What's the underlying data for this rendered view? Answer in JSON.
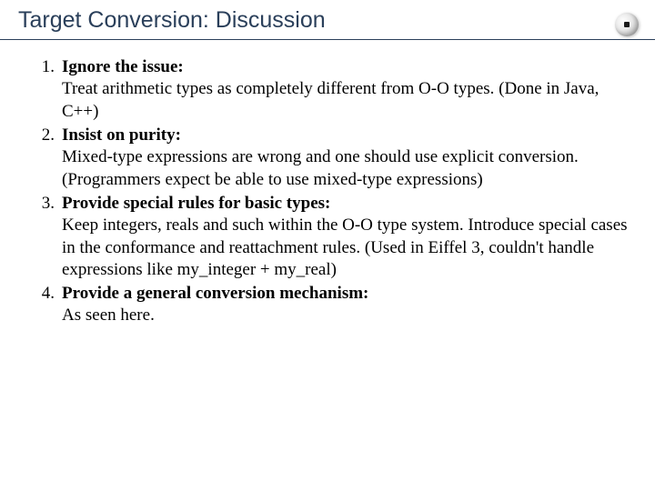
{
  "header": {
    "title": "Target Conversion: Discussion",
    "title_color": "#2a3f5a",
    "underline_color": "#2a3f5a"
  },
  "logo": {
    "name": "sphere-logo"
  },
  "list": {
    "items": [
      {
        "num": "1.",
        "title": "Ignore the issue:",
        "desc": "Treat arithmetic types as completely different from O-O types. (Done in Java, C++)"
      },
      {
        "num": "2.",
        "title": "Insist on purity:",
        "desc": "Mixed-type expressions are wrong and one should use explicit conversion. (Programmers expect be able to use mixed-type expressions)"
      },
      {
        "num": "3.",
        "title": "Provide special rules for basic types:",
        "desc": "Keep integers, reals and such within the O-O type system. Introduce special cases in the conformance and reattachment rules. (Used in Eiffel 3, couldn't handle expressions like my_integer + my_real)"
      },
      {
        "num": "4.",
        "title": "Provide a general conversion mechanism:",
        "desc": "As seen here."
      }
    ]
  },
  "typography": {
    "title_fontsize": 25,
    "body_fontsize": 19,
    "body_font": "Comic Sans MS",
    "title_font": "Verdana"
  },
  "colors": {
    "background": "#ffffff",
    "text": "#000000",
    "header_text": "#2a3f5a"
  }
}
